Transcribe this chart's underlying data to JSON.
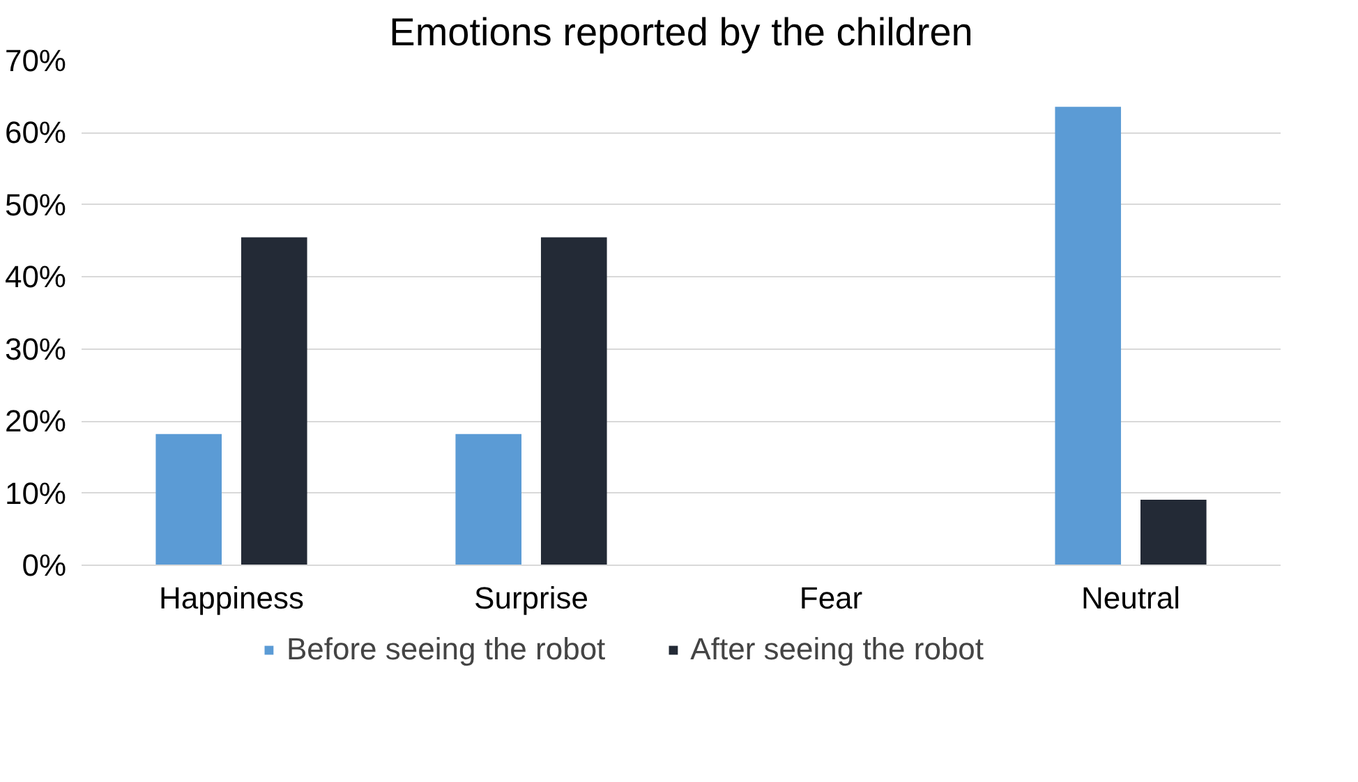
{
  "chart_data": {
    "type": "bar",
    "title": "Emotions reported by the children",
    "categories": [
      "Happiness",
      "Surprise",
      "Fear",
      "Neutral"
    ],
    "series": [
      {
        "name": "Before seeing the robot",
        "color": "#5b9bd5",
        "values": [
          18.2,
          18.2,
          0,
          63.6
        ]
      },
      {
        "name": "After seeing the robot",
        "color": "#232a36",
        "values": [
          45.5,
          45.5,
          0,
          9.1
        ]
      }
    ],
    "ylim": [
      0,
      70
    ],
    "yticks": [
      {
        "value": 0,
        "label": "0%"
      },
      {
        "value": 10,
        "label": "10%"
      },
      {
        "value": 20,
        "label": "20%"
      },
      {
        "value": 30,
        "label": "30%"
      },
      {
        "value": 40,
        "label": "40%"
      },
      {
        "value": 50,
        "label": "50%"
      },
      {
        "value": 60,
        "label": "60%"
      },
      {
        "value": 70,
        "label": "70%"
      }
    ],
    "grid": "y",
    "legend": "bottom"
  }
}
